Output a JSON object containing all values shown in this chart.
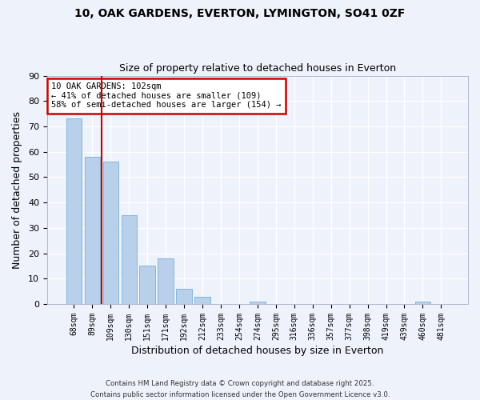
{
  "title1": "10, OAK GARDENS, EVERTON, LYMINGTON, SO41 0ZF",
  "title2": "Size of property relative to detached houses in Everton",
  "xlabel": "Distribution of detached houses by size in Everton",
  "ylabel": "Number of detached properties",
  "bar_labels": [
    "68sqm",
    "89sqm",
    "109sqm",
    "130sqm",
    "151sqm",
    "171sqm",
    "192sqm",
    "212sqm",
    "233sqm",
    "254sqm",
    "274sqm",
    "295sqm",
    "316sqm",
    "336sqm",
    "357sqm",
    "377sqm",
    "398sqm",
    "419sqm",
    "439sqm",
    "460sqm",
    "481sqm"
  ],
  "bar_values": [
    73,
    58,
    56,
    35,
    15,
    18,
    6,
    3,
    0,
    0,
    1,
    0,
    0,
    0,
    0,
    0,
    0,
    0,
    0,
    1,
    0
  ],
  "bar_color": "#b8d0ea",
  "bar_edge_color": "#7aafd4",
  "background_color": "#eef2fb",
  "grid_color": "#ffffff",
  "vline_color": "#cc0000",
  "annotation_title": "10 OAK GARDENS: 102sqm",
  "annotation_line1": "← 41% of detached houses are smaller (109)",
  "annotation_line2": "58% of semi-detached houses are larger (154) →",
  "annotation_box_color": "#ffffff",
  "annotation_box_edge": "#cc0000",
  "ylim": [
    0,
    90
  ],
  "yticks": [
    0,
    10,
    20,
    30,
    40,
    50,
    60,
    70,
    80,
    90
  ],
  "footnote1": "Contains HM Land Registry data © Crown copyright and database right 2025.",
  "footnote2": "Contains public sector information licensed under the Open Government Licence v3.0."
}
